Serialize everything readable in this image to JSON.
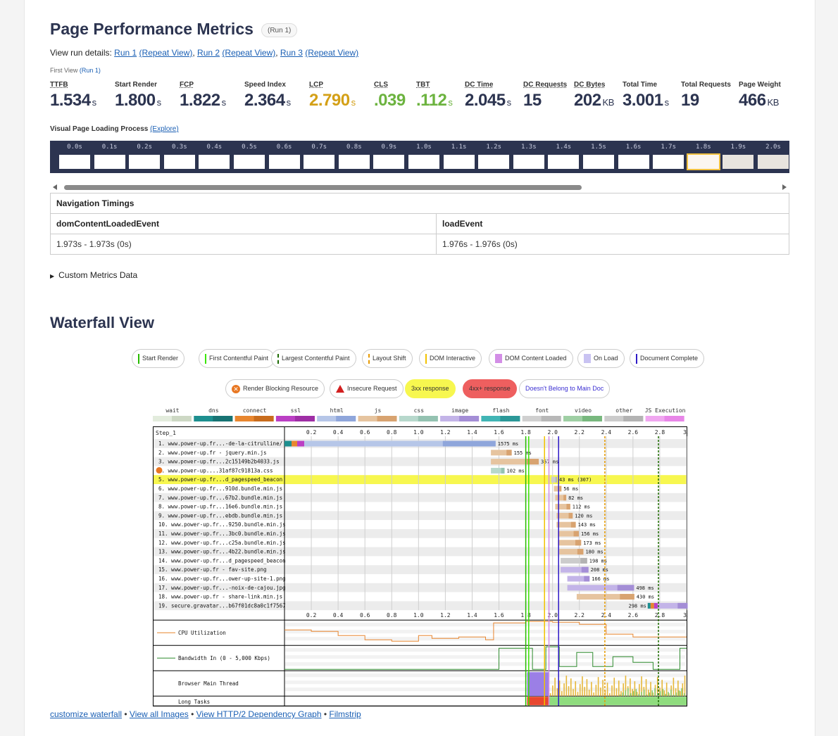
{
  "title": "Page Performance Metrics",
  "run_badge": "(Run 1)",
  "run_details": {
    "prefix": "View run details:",
    "links": [
      "Run 1",
      "(Repeat View)",
      "Run 2",
      "(Repeat View)",
      "Run 3",
      "(Repeat View)"
    ]
  },
  "first_view": {
    "label": "First View",
    "run": "(Run 1)"
  },
  "metrics": [
    {
      "label": "TTFB",
      "value": "1.534",
      "unit": "s",
      "style": "normal"
    },
    {
      "label": "Start Render",
      "value": "1.800",
      "unit": "s",
      "style": "normal"
    },
    {
      "label": "FCP",
      "value": "1.822",
      "unit": "s",
      "style": "normal"
    },
    {
      "label": "Speed Index",
      "value": "2.364",
      "unit": "s",
      "style": "normal"
    },
    {
      "label": "LCP",
      "value": "2.790",
      "unit": "s",
      "style": "orange"
    },
    {
      "label": "CLS",
      "value": ".039",
      "unit": "",
      "style": "green"
    },
    {
      "label": "TBT",
      "value": ".112",
      "unit": "s",
      "style": "green"
    },
    {
      "label": "DC Time",
      "value": "2.045",
      "unit": "s",
      "style": "normal"
    },
    {
      "label": "DC Requests",
      "value": "15",
      "unit": "",
      "style": "normal"
    },
    {
      "label": "DC Bytes",
      "value": "202",
      "unit": "KB",
      "style": "normal"
    },
    {
      "label": "Total Time",
      "value": "3.001",
      "unit": "s",
      "style": "normal"
    },
    {
      "label": "Total Requests",
      "value": "19",
      "unit": "",
      "style": "normal"
    },
    {
      "label": "Page Weight",
      "value": "466",
      "unit": "KB",
      "style": "normal"
    }
  ],
  "visual_loading": {
    "label": "Visual Page Loading Process",
    "link": "(Explore)"
  },
  "filmstrip_times": [
    "0.0s",
    "0.1s",
    "0.2s",
    "0.3s",
    "0.4s",
    "0.5s",
    "0.6s",
    "0.7s",
    "0.8s",
    "0.9s",
    "1.0s",
    "1.1s",
    "1.2s",
    "1.3s",
    "1.4s",
    "1.5s",
    "1.6s",
    "1.7s",
    "1.8s",
    "1.9s",
    "2.0s"
  ],
  "nav_timings": {
    "heading": "Navigation Timings",
    "col1": "domContentLoadedEvent",
    "col2": "loadEvent",
    "val1": "1.973s - 1.973s (0s)",
    "val2": "1.976s - 1.976s (0s)"
  },
  "custom_metrics": "Custom Metrics Data",
  "waterfall_title": "Waterfall View",
  "legend_row1": [
    {
      "label": "Start Render",
      "color": "#28bc00"
    },
    {
      "label": "First Contentful Paint",
      "color": "#39e600"
    },
    {
      "label": "Largest Contentful Paint",
      "color": "#1d6b00"
    },
    {
      "label": "Layout Shift",
      "color": "#e89b00"
    },
    {
      "label": "DOM Interactive",
      "color": "#f2c200"
    },
    {
      "label": "DOM Content Loaded",
      "color": "#d38ee6"
    },
    {
      "label": "On Load",
      "color": "#c9c3f2"
    },
    {
      "label": "Document Complete",
      "color": "#2e1ac7"
    }
  ],
  "legend_row2": [
    {
      "label": "Render Blocking Resource",
      "color": "#e87722"
    },
    {
      "label": "Insecure Request",
      "color": "#d21f1f"
    },
    {
      "label": "3xx response",
      "color": "#f7f74f"
    },
    {
      "label": "4xx+ response",
      "color": "#ee5f5f"
    },
    {
      "label": "Doesn't Belong to Main Doc",
      "color": "#3b2fd2"
    }
  ],
  "type_legend": [
    "wait",
    "dns",
    "connect",
    "ssl",
    "html",
    "js",
    "css",
    "image",
    "flash",
    "font",
    "video",
    "other",
    "JS Execution"
  ],
  "type_colors": [
    "#e3ecdd",
    "#1d8f8f",
    "#e8862f",
    "#bb3fc4",
    "#b6c6e8",
    "#e6c49f",
    "#b7d8cc",
    "#c3b4e8",
    "#41b5b5",
    "#d0d0d0",
    "#9fcfa4",
    "#cccccc",
    "#f0a7f0"
  ],
  "type_dark": [
    "#cdd8c4",
    "#177373",
    "#c86c1d",
    "#9e2ea5",
    "#8fa6db",
    "#d8a370",
    "#94c2b1",
    "#a48ed6",
    "#2c9898",
    "#b8b8b8",
    "#78b87e",
    "#b3b3b3",
    "#e886e8"
  ],
  "step_label": "Step_1",
  "ticks": [
    "0.2",
    "0.4",
    "0.6",
    "0.8",
    "1.0",
    "1.2",
    "1.4",
    "1.6",
    "1.8",
    "2.0",
    "2.2",
    "2.4",
    "2.6",
    "2.8",
    "3."
  ],
  "requests": [
    {
      "n": "1.",
      "url": "www.power-up.fr...-de-la-citrulline/",
      "label": "1575 ms"
    },
    {
      "n": "2.",
      "url": "www.power-up.fr - jquery.min.js",
      "label": "155 ms"
    },
    {
      "n": "3.",
      "url": "www.power-up.fr...2c15149b2b4033.js",
      "label": "357 ms"
    },
    {
      "n": "4.",
      "url": "www.power-up....31af87c91813a.css",
      "label": "102 ms"
    },
    {
      "n": "5.",
      "url": "www.power-up.fr...d_pagespeed_beacon",
      "label": "43 ms (307)"
    },
    {
      "n": "6.",
      "url": "www.power-up.fr...910d.bundle.min.js",
      "label": "56 ms"
    },
    {
      "n": "7.",
      "url": "www.power-up.fr...67b2.bundle.min.js",
      "label": "82 ms"
    },
    {
      "n": "8.",
      "url": "www.power-up.fr...16e6.bundle.min.js",
      "label": "112 ms"
    },
    {
      "n": "9.",
      "url": "www.power-up.fr...ebdb.bundle.min.js",
      "label": "120 ms"
    },
    {
      "n": "10.",
      "url": "www.power-up.fr...9250.bundle.min.js",
      "label": "143 ms"
    },
    {
      "n": "11.",
      "url": "www.power-up.fr...3bc0.bundle.min.js",
      "label": "156 ms"
    },
    {
      "n": "12.",
      "url": "www.power-up.fr...c25a.bundle.min.js",
      "label": "173 ms"
    },
    {
      "n": "13.",
      "url": "www.power-up.fr...4b22.bundle.min.js",
      "label": "180 ms"
    },
    {
      "n": "14.",
      "url": "www.power-up.fr...d_pagespeed_beacon",
      "label": "198 ms"
    },
    {
      "n": "15.",
      "url": "www.power-up.fr - fav-site.png",
      "label": "208 ms"
    },
    {
      "n": "16.",
      "url": "www.power-up.fr...ower-up-site-1.png",
      "label": "166 ms"
    },
    {
      "n": "17.",
      "url": "www.power-up.fr...-noix-de-cajou.jpg",
      "label": "498 ms"
    },
    {
      "n": "18.",
      "url": "www.power-up.fr - share-link.min.js",
      "label": "430 ms"
    },
    {
      "n": "19.",
      "url": "secure.gravatar...b67f01dc8a0c1f7567",
      "label": "298 ms"
    }
  ],
  "chart_data": {
    "type": "bar",
    "title": "",
    "xlabel": "",
    "ylabel": "",
    "xlim": [
      0,
      3.0
    ],
    "categories": [
      "1.",
      "2.",
      "3.",
      "4.",
      "5.",
      "6.",
      "7.",
      "8.",
      "9.",
      "10.",
      "11.",
      "12.",
      "13.",
      "14.",
      "15.",
      "16.",
      "17.",
      "18.",
      "19."
    ],
    "series": [
      {
        "start": [
          0.0,
          1.54,
          1.54,
          1.54,
          1.99,
          2.01,
          2.02,
          2.02,
          2.03,
          2.03,
          2.04,
          2.04,
          2.05,
          2.06,
          2.06,
          2.11,
          2.11,
          2.18,
          2.71
        ],
        "duration_ms": [
          1575,
          155,
          357,
          102,
          43,
          56,
          82,
          112,
          120,
          143,
          156,
          173,
          180,
          198,
          208,
          166,
          498,
          430,
          298
        ],
        "type": [
          "html",
          "js",
          "js",
          "css",
          "other",
          "js",
          "js",
          "js",
          "js",
          "js",
          "js",
          "js",
          "js",
          "other",
          "image",
          "image",
          "image",
          "js",
          "image"
        ]
      }
    ],
    "markers": [
      {
        "name": "Start Render",
        "x": 1.8
      },
      {
        "name": "First Contentful Paint",
        "x": 1.822
      },
      {
        "name": "Largest Contentful Paint",
        "x": 2.79
      },
      {
        "name": "DOM Interactive",
        "x": 1.94
      },
      {
        "name": "DOM Content Loaded",
        "x": 1.973
      },
      {
        "name": "Document Complete",
        "x": 2.045
      },
      {
        "name": "Layout Shift",
        "x": 2.39
      }
    ],
    "highlight_row": 5,
    "render_blocking_row": 4,
    "panels": [
      "CPU Utilization",
      "Bandwidth In (0 - 5,000 Kbps)",
      "Browser Main Thread",
      "Long Tasks"
    ]
  },
  "footer_links": [
    "customize waterfall",
    "View all Images",
    "View HTTP/2 Dependency Graph",
    "Filmstrip"
  ]
}
